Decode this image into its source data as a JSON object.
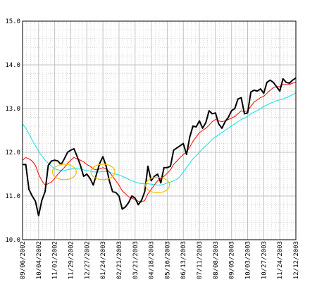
{
  "chart_data": {
    "type": "line",
    "title": "",
    "xlabel": "",
    "ylabel": "",
    "ylim": [
      10.0,
      15.0
    ],
    "y_ticks": [
      "10.0",
      "11.0",
      "12.0",
      "13.0",
      "14.0",
      "15.0"
    ],
    "x_tick_labels": [
      "09/06/2002",
      "10/04/2002",
      "11/01/2002",
      "11/29/2002",
      "12/27/2002",
      "01/24/2003",
      "02/21/2003",
      "03/21/2003",
      "04/18/2003",
      "05/16/2003",
      "06/13/2003",
      "07/11/2003",
      "08/08/2003",
      "09/05/2003",
      "10/03/2003",
      "10/27/2003",
      "11/24/2003",
      "12/12/2003"
    ],
    "grid": true,
    "grid_color": "#c0c0c0",
    "series": [
      {
        "color": "#000000",
        "values": [
          11.72,
          11.72,
          11.15,
          11.0,
          10.88,
          10.55,
          10.9,
          11.1,
          11.7,
          11.8,
          11.82,
          11.8,
          11.72,
          11.85,
          12.0,
          12.05,
          12.08,
          11.9,
          11.7,
          11.45,
          11.5,
          11.4,
          11.25,
          11.5,
          11.75,
          11.9,
          11.68,
          11.35,
          11.1,
          11.08,
          11.0,
          10.7,
          10.75,
          10.85,
          11.0,
          10.95,
          10.8,
          10.9,
          11.1,
          11.68,
          11.35,
          11.45,
          11.5,
          11.3,
          11.65,
          11.65,
          11.68,
          12.05,
          12.1,
          12.15,
          12.2,
          11.95,
          12.35,
          12.6,
          12.58,
          12.72,
          12.55,
          12.68,
          12.95,
          12.88,
          12.9,
          12.65,
          12.55,
          12.7,
          12.8,
          12.95,
          13.0,
          13.22,
          13.25,
          12.88,
          12.9,
          13.38,
          13.42,
          13.4,
          13.45,
          13.35,
          13.6,
          13.65,
          13.6,
          13.5,
          13.4,
          13.68,
          13.6,
          13.58,
          13.65,
          13.7
        ]
      },
      {
        "color": "#ff0000",
        "values": [
          11.82,
          11.88,
          11.85,
          11.8,
          11.7,
          11.5,
          11.35,
          11.25,
          11.28,
          11.32,
          11.4,
          11.5,
          11.58,
          11.65,
          11.75,
          11.82,
          11.88,
          11.85,
          11.82,
          11.78,
          11.72,
          11.68,
          11.62,
          11.6,
          11.62,
          11.65,
          11.62,
          11.55,
          11.45,
          11.35,
          11.25,
          11.12,
          11.05,
          10.98,
          10.95,
          10.92,
          10.88,
          10.86,
          10.9,
          11.05,
          11.15,
          11.25,
          11.35,
          11.4,
          11.45,
          11.52,
          11.6,
          11.72,
          11.8,
          11.88,
          11.95,
          12.0,
          12.12,
          12.25,
          12.35,
          12.45,
          12.5,
          12.55,
          12.62,
          12.7,
          12.75,
          12.72,
          12.7,
          12.72,
          12.75,
          12.78,
          12.82,
          12.88,
          12.95,
          12.93,
          12.95,
          13.05,
          13.15,
          13.2,
          13.25,
          13.28,
          13.35,
          13.42,
          13.48,
          13.5,
          13.5,
          13.55,
          13.55,
          13.55,
          13.58,
          13.6
        ]
      },
      {
        "color": "#00e5f0",
        "values": [
          12.65,
          12.55,
          12.42,
          12.28,
          12.15,
          12.02,
          11.92,
          11.82,
          11.75,
          11.68,
          11.62,
          11.6,
          11.58,
          11.58,
          11.6,
          11.62,
          11.63,
          11.62,
          11.62,
          11.6,
          11.58,
          11.57,
          11.55,
          11.55,
          11.55,
          11.56,
          11.56,
          11.55,
          11.52,
          11.5,
          11.48,
          11.45,
          11.42,
          11.38,
          11.35,
          11.32,
          11.3,
          11.28,
          11.28,
          11.28,
          11.27,
          11.26,
          11.25,
          11.25,
          11.27,
          11.3,
          11.32,
          11.35,
          11.38,
          11.45,
          11.55,
          11.65,
          11.75,
          11.85,
          11.92,
          12.0,
          12.08,
          12.15,
          12.22,
          12.3,
          12.35,
          12.4,
          12.45,
          12.5,
          12.55,
          12.6,
          12.65,
          12.7,
          12.75,
          12.78,
          12.82,
          12.88,
          12.92,
          12.95,
          13.0,
          13.05,
          13.08,
          13.12,
          13.15,
          13.18,
          13.2,
          13.22,
          13.25,
          13.28,
          13.32,
          13.36
        ]
      }
    ],
    "highlights": [
      {
        "color": "#f0c000",
        "center_index": 13,
        "value": 11.55
      },
      {
        "color": "#f0c000",
        "center_index": 25,
        "value": 11.55
      },
      {
        "color": "#f0c000",
        "center_index": 42,
        "value": 11.25
      }
    ]
  }
}
